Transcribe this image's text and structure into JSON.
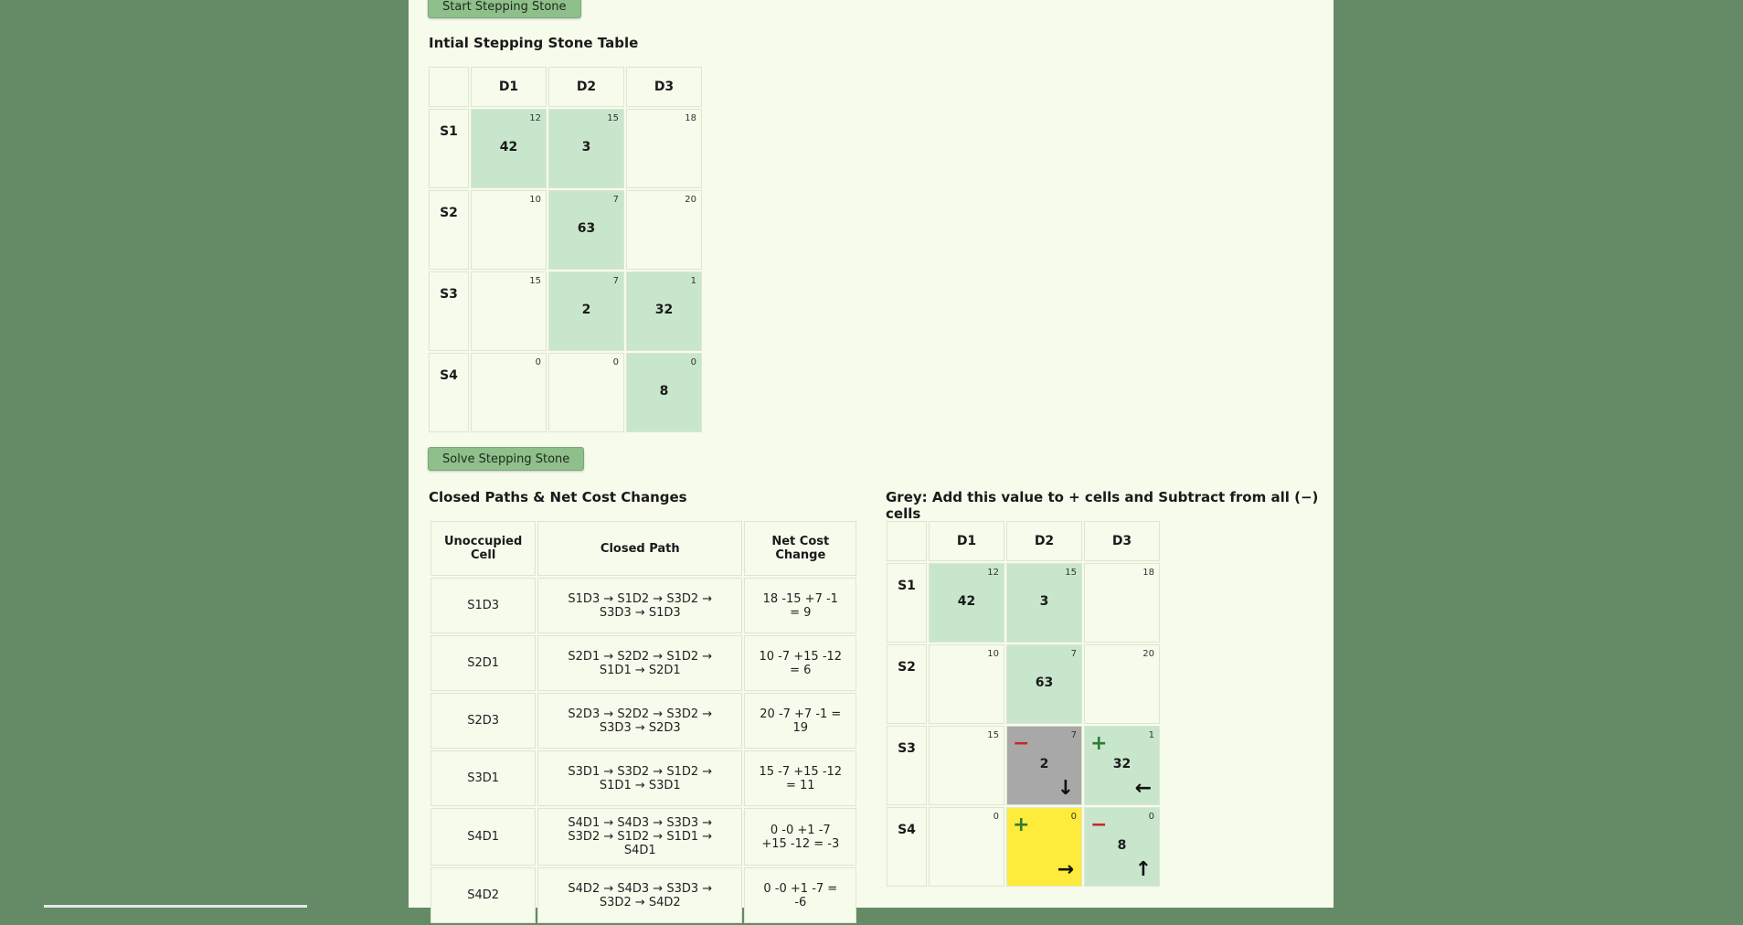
{
  "buttons": {
    "start": "Start Stepping Stone",
    "solve": "Solve Stepping Stone"
  },
  "initial": {
    "title": "Intial Stepping Stone Table",
    "columns": [
      "D1",
      "D2",
      "D3"
    ],
    "rows": [
      {
        "label": "S1",
        "cells": [
          {
            "cost": "12",
            "value": "42"
          },
          {
            "cost": "15",
            "value": "3"
          },
          {
            "cost": "18",
            "value": ""
          }
        ]
      },
      {
        "label": "S2",
        "cells": [
          {
            "cost": "10",
            "value": ""
          },
          {
            "cost": "7",
            "value": "63"
          },
          {
            "cost": "20",
            "value": ""
          }
        ]
      },
      {
        "label": "S3",
        "cells": [
          {
            "cost": "15",
            "value": ""
          },
          {
            "cost": "7",
            "value": "2"
          },
          {
            "cost": "1",
            "value": "32"
          }
        ]
      },
      {
        "label": "S4",
        "cells": [
          {
            "cost": "0",
            "value": ""
          },
          {
            "cost": "0",
            "value": ""
          },
          {
            "cost": "0",
            "value": "8"
          }
        ]
      }
    ]
  },
  "paths": {
    "title": "Closed Paths & Net Cost Changes",
    "headers": [
      "Unoccupied Cell",
      "Closed Path",
      "Net Cost Change"
    ],
    "rows": [
      {
        "cell": "S1D3",
        "path": "S1D3 → S1D2 → S3D2 → S3D3 → S1D3",
        "net": "18 -15 +7 -1 = 9"
      },
      {
        "cell": "S2D1",
        "path": "S2D1 → S2D2 → S1D2 → S1D1 → S2D1",
        "net": "10 -7 +15 -12 = 6"
      },
      {
        "cell": "S2D3",
        "path": "S2D3 → S2D2 → S3D2 → S3D3 → S2D3",
        "net": "20 -7 +7 -1 = 19"
      },
      {
        "cell": "S3D1",
        "path": "S3D1 → S3D2 → S1D2 → S1D1 → S3D1",
        "net": "15 -7 +15 -12 = 11"
      },
      {
        "cell": "S4D1",
        "path": "S4D1 → S4D3 → S3D3 → S3D2 → S1D2 → S1D1 → S4D1",
        "net": "0 -0 +1 -7 +15 -12 = -3"
      },
      {
        "cell": "S4D2",
        "path": "S4D2 → S4D3 → S3D3 → S3D2 → S4D2",
        "net": "0 -0 +1 -7 = -6"
      }
    ]
  },
  "grey": {
    "title": "Grey: Add this value to + cells and Subtract from all (−) cells",
    "columns": [
      "D1",
      "D2",
      "D3"
    ],
    "rows": [
      {
        "label": "S1",
        "cells": [
          {
            "cost": "12",
            "value": "42"
          },
          {
            "cost": "15",
            "value": "3"
          },
          {
            "cost": "18",
            "value": ""
          }
        ]
      },
      {
        "label": "S2",
        "cells": [
          {
            "cost": "10",
            "value": ""
          },
          {
            "cost": "7",
            "value": "63"
          },
          {
            "cost": "20",
            "value": ""
          }
        ]
      },
      {
        "label": "S3",
        "cells": [
          {
            "cost": "15",
            "value": ""
          },
          {
            "cost": "7",
            "value": "2",
            "sign": "−",
            "arrow": "↓"
          },
          {
            "cost": "1",
            "value": "32",
            "sign": "+",
            "arrow": "←"
          }
        ]
      },
      {
        "label": "S4",
        "cells": [
          {
            "cost": "0",
            "value": ""
          },
          {
            "cost": "0",
            "value": "",
            "sign": "+",
            "arrow": "→"
          },
          {
            "cost": "0",
            "value": "8",
            "sign": "−",
            "arrow": "↑"
          }
        ]
      }
    ]
  },
  "colors": {
    "background": "#648a66",
    "page": "#f6fbec",
    "allocated": "#c8e6cc",
    "entering": "#ffeb3b",
    "leaving": "#a8a8a8",
    "button": "#8fbf8a"
  }
}
